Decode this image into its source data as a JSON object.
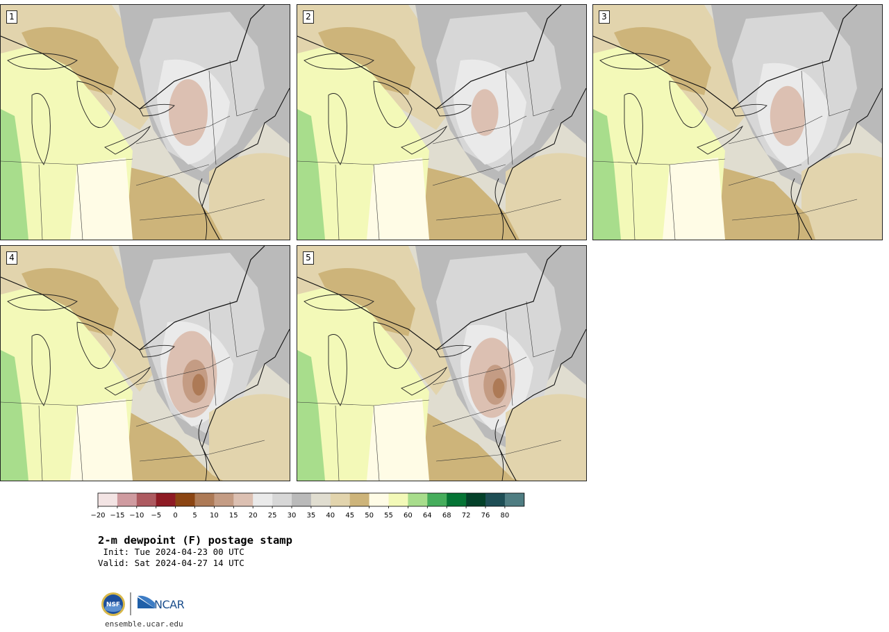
{
  "panels": [
    {
      "label": "1"
    },
    {
      "label": "2"
    },
    {
      "label": "3"
    },
    {
      "label": "4"
    },
    {
      "label": "5"
    }
  ],
  "colorbar": {
    "ticks": [
      "−20",
      "−15",
      "−10",
      "−5",
      "0",
      "5",
      "10",
      "15",
      "20",
      "25",
      "30",
      "35",
      "40",
      "45",
      "50",
      "55",
      "60",
      "64",
      "68",
      "72",
      "76",
      "80"
    ],
    "colors": [
      "#f3e4e4",
      "#cf9ba0",
      "#ad5a60",
      "#8e1b24",
      "#8b4513",
      "#ad7a56",
      "#c49c84",
      "#dcc0b2",
      "#eaeaea",
      "#d7d7d7",
      "#bababa",
      "#e0ddd0",
      "#e2d4ad",
      "#cdb47a",
      "#fffce6",
      "#f3f9b8",
      "#a8dd8c",
      "#46ad5c",
      "#057435",
      "#04412a",
      "#1e4e55",
      "#4f7d82"
    ]
  },
  "title": {
    "main": "2-m dewpoint (F) postage stamp",
    "init": " Init: Tue 2024-04-23 00 UTC",
    "valid": "Valid: Sat 2024-04-27 14 UTC"
  },
  "logos": {
    "nsf": "NSF",
    "ncar": "NCAR",
    "url": "ensemble.ucar.edu"
  }
}
